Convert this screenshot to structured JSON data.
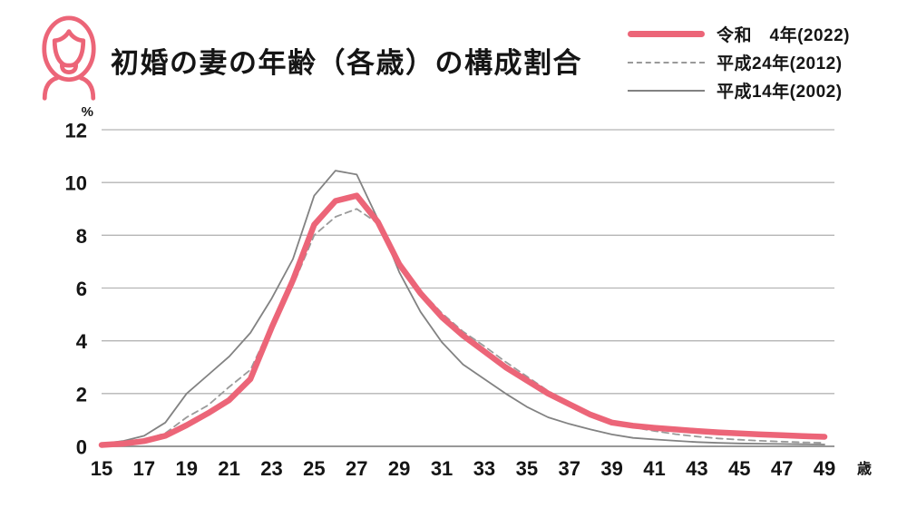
{
  "header": {
    "title": "初婚の妻の年齢（各歳）の構成割合",
    "icon": "woman-icon"
  },
  "colors": {
    "accent_pink": "#EC6578",
    "gray_dashed": "#9A9A9A",
    "gray_solid": "#828282",
    "gridline": "#B5B5B5",
    "baseline": "#8A8A8A",
    "text": "#151515"
  },
  "chart_data": {
    "type": "line",
    "title": "初婚の妻の年齢（各歳）の構成割合",
    "xlabel": "歳",
    "ylabel": "%",
    "x": [
      15,
      16,
      17,
      18,
      19,
      20,
      21,
      22,
      23,
      24,
      25,
      26,
      27,
      28,
      29,
      30,
      31,
      32,
      33,
      34,
      35,
      36,
      37,
      38,
      39,
      40,
      41,
      42,
      43,
      44,
      45,
      46,
      47,
      48,
      49
    ],
    "x_ticks": [
      15,
      17,
      19,
      21,
      23,
      25,
      27,
      29,
      31,
      33,
      35,
      37,
      39,
      41,
      43,
      45,
      47,
      49
    ],
    "y_ticks": [
      0,
      2,
      4,
      6,
      8,
      10,
      12
    ],
    "ylim": [
      0,
      12
    ],
    "grid": true,
    "legend_position": "top-right",
    "series": [
      {
        "name": "令和　4年(2022)",
        "style": "solid-thick",
        "color": "#EC6578",
        "values": [
          0.05,
          0.1,
          0.2,
          0.4,
          0.8,
          1.25,
          1.75,
          2.55,
          4.5,
          6.3,
          8.4,
          9.3,
          9.5,
          8.5,
          6.9,
          5.8,
          4.9,
          4.2,
          3.6,
          3.0,
          2.5,
          2.0,
          1.6,
          1.2,
          0.9,
          0.78,
          0.7,
          0.64,
          0.58,
          0.53,
          0.49,
          0.45,
          0.42,
          0.39,
          0.36
        ]
      },
      {
        "name": "平成24年(2012)",
        "style": "dashed",
        "color": "#9A9A9A",
        "values": [
          0.05,
          0.12,
          0.25,
          0.5,
          1.1,
          1.55,
          2.25,
          2.9,
          4.6,
          6.1,
          8.0,
          8.7,
          9.0,
          8.45,
          7.0,
          5.9,
          5.05,
          4.35,
          3.8,
          3.2,
          2.65,
          2.1,
          1.65,
          1.25,
          0.95,
          0.72,
          0.58,
          0.46,
          0.37,
          0.3,
          0.25,
          0.21,
          0.18,
          0.15,
          0.13
        ]
      },
      {
        "name": "平成14年(2002)",
        "style": "solid-thin",
        "color": "#828282",
        "values": [
          0.1,
          0.2,
          0.4,
          0.9,
          2.0,
          2.7,
          3.4,
          4.3,
          5.6,
          7.1,
          9.5,
          10.45,
          10.3,
          8.6,
          6.6,
          5.1,
          3.95,
          3.1,
          2.55,
          2.0,
          1.5,
          1.1,
          0.85,
          0.64,
          0.45,
          0.32,
          0.26,
          0.21,
          0.16,
          0.13,
          0.11,
          0.1,
          0.09,
          0.08,
          0.07
        ]
      }
    ]
  }
}
